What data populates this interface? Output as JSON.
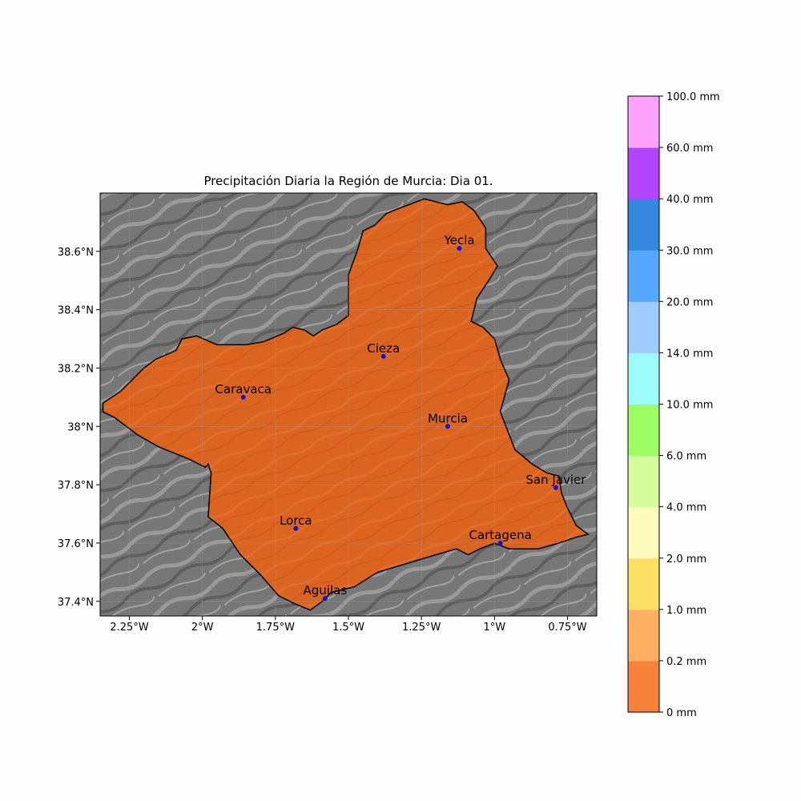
{
  "title": "Precipitación Diaria la Región de Murcia: Dia 01.",
  "map": {
    "lon_range": [
      -2.35,
      -0.65
    ],
    "lat_range": [
      37.35,
      38.8
    ],
    "lon_ticks": [
      {
        "value": -2.25,
        "label": "2.25°W"
      },
      {
        "value": -2.0,
        "label": "2°W"
      },
      {
        "value": -1.75,
        "label": "1.75°W"
      },
      {
        "value": -1.5,
        "label": "1.5°W"
      },
      {
        "value": -1.25,
        "label": "1.25°W"
      },
      {
        "value": -1.0,
        "label": "1°W"
      },
      {
        "value": -0.75,
        "label": "0.75°W"
      }
    ],
    "lat_ticks": [
      {
        "value": 38.6,
        "label": "38.6°N"
      },
      {
        "value": 38.4,
        "label": "38.4°N"
      },
      {
        "value": 38.2,
        "label": "38.2°N"
      },
      {
        "value": 38.0,
        "label": "38°N"
      },
      {
        "value": 37.8,
        "label": "37.8°N"
      },
      {
        "value": 37.6,
        "label": "37.6°N"
      },
      {
        "value": 37.4,
        "label": "37.4°N"
      }
    ],
    "gridlines": true,
    "region_fill_color": "#dc6421",
    "background_color": "#7a7a7a",
    "sea_color": "#777777",
    "marker_color": "#1010dd",
    "region_boundary_lonlat": [
      [
        -2.34,
        38.05
      ],
      [
        -2.3,
        38.03
      ],
      [
        -2.22,
        37.97
      ],
      [
        -2.15,
        37.93
      ],
      [
        -2.05,
        37.89
      ],
      [
        -1.99,
        37.86
      ],
      [
        -1.98,
        37.87
      ],
      [
        -1.97,
        37.84
      ],
      [
        -1.98,
        37.69
      ],
      [
        -1.93,
        37.65
      ],
      [
        -1.87,
        37.56
      ],
      [
        -1.8,
        37.49
      ],
      [
        -1.74,
        37.42
      ],
      [
        -1.68,
        37.39
      ],
      [
        -1.63,
        37.37
      ],
      [
        -1.59,
        37.4
      ],
      [
        -1.56,
        37.43
      ],
      [
        -1.48,
        37.45
      ],
      [
        -1.4,
        37.5
      ],
      [
        -1.3,
        37.53
      ],
      [
        -1.2,
        37.56
      ],
      [
        -1.13,
        37.58
      ],
      [
        -1.09,
        37.56
      ],
      [
        -1.05,
        37.58
      ],
      [
        -1.0,
        37.6
      ],
      [
        -0.95,
        37.58
      ],
      [
        -0.85,
        37.58
      ],
      [
        -0.78,
        37.6
      ],
      [
        -0.72,
        37.62
      ],
      [
        -0.68,
        37.63
      ],
      [
        -0.72,
        37.66
      ],
      [
        -0.75,
        37.72
      ],
      [
        -0.77,
        37.77
      ],
      [
        -0.78,
        37.83
      ],
      [
        -0.82,
        37.84
      ],
      [
        -0.87,
        37.87
      ],
      [
        -0.93,
        37.92
      ],
      [
        -0.98,
        38.05
      ],
      [
        -0.95,
        38.16
      ],
      [
        -0.98,
        38.23
      ],
      [
        -1.0,
        38.3
      ],
      [
        -1.04,
        38.34
      ],
      [
        -1.08,
        38.36
      ],
      [
        -1.06,
        38.44
      ],
      [
        -1.02,
        38.5
      ],
      [
        -0.99,
        38.55
      ],
      [
        -1.03,
        38.61
      ],
      [
        -1.03,
        38.68
      ],
      [
        -1.07,
        38.74
      ],
      [
        -1.11,
        38.77
      ],
      [
        -1.16,
        38.76
      ],
      [
        -1.24,
        38.78
      ],
      [
        -1.32,
        38.75
      ],
      [
        -1.37,
        38.73
      ],
      [
        -1.41,
        38.69
      ],
      [
        -1.45,
        38.67
      ],
      [
        -1.47,
        38.6
      ],
      [
        -1.5,
        38.52
      ],
      [
        -1.5,
        38.38
      ],
      [
        -1.54,
        38.35
      ],
      [
        -1.59,
        38.33
      ],
      [
        -1.62,
        38.31
      ],
      [
        -1.65,
        38.33
      ],
      [
        -1.69,
        38.34
      ],
      [
        -1.72,
        38.32
      ],
      [
        -1.79,
        38.29
      ],
      [
        -1.85,
        38.28
      ],
      [
        -1.95,
        38.28
      ],
      [
        -2.02,
        38.31
      ],
      [
        -2.07,
        38.3
      ],
      [
        -2.09,
        38.26
      ],
      [
        -2.16,
        38.23
      ],
      [
        -2.2,
        38.2
      ],
      [
        -2.28,
        38.12
      ],
      [
        -2.34,
        38.08
      ]
    ],
    "cities": [
      {
        "name": "Yecla",
        "lon": -1.12,
        "lat": 38.61
      },
      {
        "name": "Cieza",
        "lon": -1.38,
        "lat": 38.24
      },
      {
        "name": "Caravaca",
        "lon": -1.86,
        "lat": 38.1
      },
      {
        "name": "Murcia",
        "lon": -1.16,
        "lat": 38.0
      },
      {
        "name": "San Javier",
        "lon": -0.79,
        "lat": 37.79
      },
      {
        "name": "Lorca",
        "lon": -1.68,
        "lat": 37.65
      },
      {
        "name": "Cartagena",
        "lon": -0.98,
        "lat": 37.6
      },
      {
        "name": "Aguilas",
        "lon": -1.58,
        "lat": 37.41
      }
    ]
  },
  "colorbar": {
    "levels": [
      {
        "label": "0 mm",
        "color": "#f7823b"
      },
      {
        "label": "0.2 mm",
        "color": "#fdaf63"
      },
      {
        "label": "1.0 mm",
        "color": "#fce065"
      },
      {
        "label": "2.0 mm",
        "color": "#fefcbc"
      },
      {
        "label": "4.0 mm",
        "color": "#d5fc9d"
      },
      {
        "label": "6.0 mm",
        "color": "#9efc65"
      },
      {
        "label": "10.0 mm",
        "color": "#9cfcfc"
      },
      {
        "label": "14.0 mm",
        "color": "#9fcbfe"
      },
      {
        "label": "20.0 mm",
        "color": "#55a8fd"
      },
      {
        "label": "30.0 mm",
        "color": "#3387dc"
      },
      {
        "label": "40.0 mm",
        "color": "#b244fd"
      },
      {
        "label": "60.0 mm",
        "color": "#fea3fd"
      }
    ],
    "top_label": "100.0 mm"
  }
}
